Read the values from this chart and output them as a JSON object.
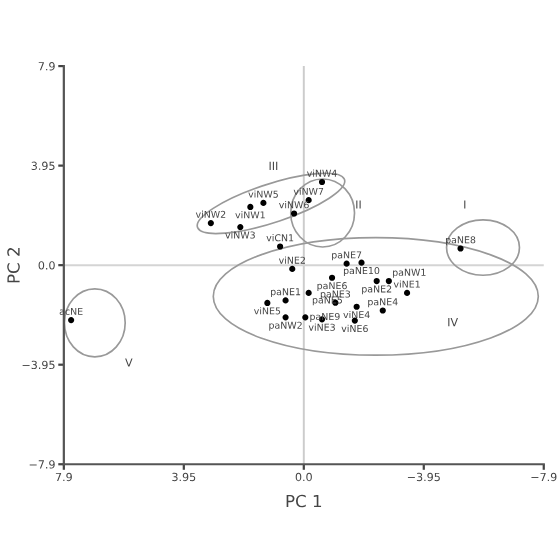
{
  "chart_data": {
    "type": "scatter",
    "xlabel": "PC 1",
    "ylabel": "PC 2",
    "xlim": [
      7.9,
      -7.9
    ],
    "ylim": [
      -7.9,
      7.9
    ],
    "xticks": [
      7.9,
      3.95,
      {
        "value": 0,
        "label": "0.0"
      },
      {
        "value": -3.95,
        "label": "−3.95"
      },
      {
        "value": -7.9,
        "label": "−7.9"
      }
    ],
    "yticks": [
      {
        "value": -7.9,
        "label": "−7.9"
      },
      {
        "value": -3.95,
        "label": "−3.95"
      },
      {
        "value": 0,
        "label": "0.0"
      },
      3.95,
      7.9
    ],
    "grid": false,
    "marker": "circle",
    "series": [
      {
        "color": "#000000",
        "x": [
          -0.6,
          1.33,
          1.76,
          2.09,
          3.06,
          -0.16,
          0.32,
          -5.16,
          7.66,
          0.78,
          -1.41,
          -1.9,
          -0.93,
          -2.4,
          -2.8,
          0.38,
          0.6,
          -0.16,
          -1.74,
          -3.4,
          -2.6,
          1.2,
          -1.04,
          0.6,
          -0.05,
          -0.6,
          -1.68
        ],
        "values": [
          3.3,
          2.47,
          2.31,
          1.51,
          1.67,
          2.58,
          2.05,
          0.66,
          -2.18,
          0.74,
          0.06,
          0.1,
          -0.5,
          -0.63,
          -0.63,
          -0.15,
          -1.4,
          -1.1,
          -1.65,
          -1.1,
          -1.8,
          -1.5,
          -1.49,
          -2.07,
          -2.07,
          -2.15,
          -2.2
        ]
      }
    ],
    "ref_lines": [
      {
        "axis": "x",
        "value": 0,
        "color": "#cccccc"
      },
      {
        "axis": "y",
        "value": 0,
        "color": "#d4d4d4"
      }
    ],
    "annotations": [
      {
        "text": "viNW4",
        "x": -0.6,
        "y": 3.3
      },
      {
        "text": "viNW5",
        "x": 1.33,
        "y": 2.47
      },
      {
        "text": "viNW1",
        "x": 1.76,
        "y": 2.31
      },
      {
        "text": "viNW3",
        "x": 2.09,
        "y": 1.51
      },
      {
        "text": "viNW2",
        "x": 3.06,
        "y": 1.67
      },
      {
        "text": "viNW7",
        "x": -0.16,
        "y": 2.58
      },
      {
        "text": "viNW6",
        "x": 0.32,
        "y": 2.05
      },
      {
        "text": "paNE8",
        "x": -5.16,
        "y": 0.66
      },
      {
        "text": "acNE",
        "x": 7.66,
        "y": -2.18
      },
      {
        "text": "viCN1",
        "x": 0.78,
        "y": 0.74
      },
      {
        "text": "paNE7",
        "x": -1.41,
        "y": 0.06
      },
      {
        "text": "paNE10",
        "x": -1.9,
        "y": 0.1
      },
      {
        "text": "paNE6",
        "x": -0.93,
        "y": -0.5
      },
      {
        "text": "paNE2",
        "x": -2.4,
        "y": -0.63
      },
      {
        "text": "paNW1",
        "x": -2.8,
        "y": -0.63
      },
      {
        "text": "viNE2",
        "x": 0.38,
        "y": -0.15
      },
      {
        "text": "paNE1",
        "x": 0.6,
        "y": -1.4
      },
      {
        "text": "paNE5",
        "x": -0.16,
        "y": -1.1
      },
      {
        "text": "viNE4",
        "x": -1.74,
        "y": -1.65
      },
      {
        "text": "viNE1",
        "x": -3.4,
        "y": -1.1
      },
      {
        "text": "paNE4",
        "x": -2.6,
        "y": -1.8
      },
      {
        "text": "viNE5",
        "x": 1.2,
        "y": -1.5
      },
      {
        "text": "paNE3",
        "x": -1.04,
        "y": -1.49
      },
      {
        "text": "paNW2",
        "x": 0.6,
        "y": -2.07
      },
      {
        "text": "paNE9",
        "x": -0.05,
        "y": -2.07
      },
      {
        "text": "viNE3",
        "x": -0.6,
        "y": -2.15
      },
      {
        "text": "viNE6",
        "x": -1.68,
        "y": -2.2
      },
      "I",
      "II",
      "III",
      "IV",
      "V"
    ]
  }
}
